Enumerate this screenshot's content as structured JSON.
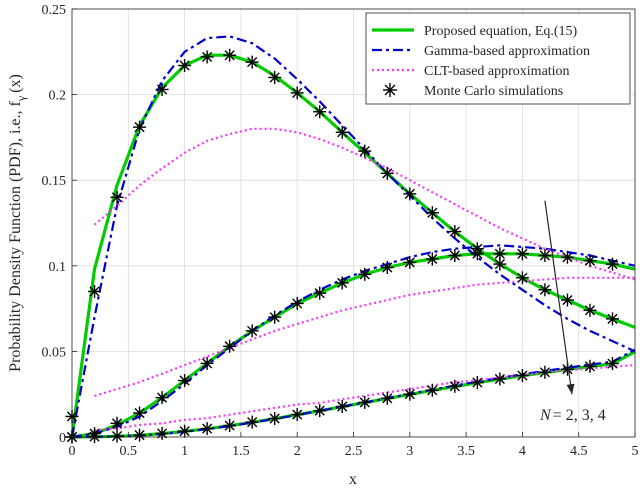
{
  "chart_data": {
    "type": "line",
    "xlabel": "x",
    "ylabel_main": "Probability Density Function (PDF), i.e., f",
    "ylabel_sub": "γ",
    "ylabel_tail": "(x)",
    "xlim": [
      0,
      5
    ],
    "ylim": [
      0,
      0.25
    ],
    "xticks": [
      "0",
      "0.5",
      "1",
      "1.5",
      "2",
      "2.5",
      "3",
      "3.5",
      "4",
      "4.5",
      "5"
    ],
    "yticks": [
      "0",
      "0.05",
      "0.1",
      "0.15",
      "0.2",
      "0.25"
    ],
    "grid": true,
    "legend_position": "top-right",
    "annotation": {
      "prefix": "N",
      "suffix": "= 2, 3, 4"
    },
    "colors": {
      "proposed": "#00cc00",
      "gamma": "#0000cc",
      "clt": "#ff33ff",
      "mc": "#000000"
    },
    "legend": [
      {
        "key": "proposed",
        "label": "Proposed equation, Eq.(15)"
      },
      {
        "key": "gamma",
        "label": "Gamma-based approximation"
      },
      {
        "key": "clt",
        "label": "CLT-based approximation"
      },
      {
        "key": "mc",
        "label": "Monte Carlo simulations"
      }
    ],
    "series": [
      {
        "key": "proposed",
        "groups": [
          {
            "N": 2,
            "x": [
              0,
              0.2,
              0.4,
              0.6,
              0.8,
              1.0,
              1.2,
              1.4,
              1.6,
              1.8,
              2.0,
              2.2,
              2.4,
              2.6,
              2.8,
              3.0,
              3.2,
              3.4,
              3.6,
              3.8,
              4.0,
              4.2,
              4.4,
              4.6,
              4.8,
              5.0
            ],
            "y": [
              0,
              0.098,
              0.147,
              0.182,
              0.204,
              0.217,
              0.223,
              0.223,
              0.219,
              0.211,
              0.201,
              0.19,
              0.178,
              0.166,
              0.154,
              0.142,
              0.131,
              0.12,
              0.11,
              0.101,
              0.093,
              0.086,
              0.08,
              0.074,
              0.069,
              0.064
            ]
          },
          {
            "N": 3,
            "x": [
              0,
              0.2,
              0.4,
              0.6,
              0.8,
              1.0,
              1.2,
              1.4,
              1.6,
              1.8,
              2.0,
              2.2,
              2.4,
              2.6,
              2.8,
              3.0,
              3.2,
              3.4,
              3.6,
              3.8,
              4.0,
              4.2,
              4.4,
              4.6,
              4.8,
              5.0
            ],
            "y": [
              0,
              0.002,
              0.007,
              0.014,
              0.023,
              0.033,
              0.043,
              0.053,
              0.062,
              0.07,
              0.078,
              0.084,
              0.09,
              0.095,
              0.099,
              0.102,
              0.104,
              0.106,
              0.107,
              0.107,
              0.107,
              0.106,
              0.105,
              0.103,
              0.101,
              0.098
            ]
          },
          {
            "N": 4,
            "x": [
              0,
              0.2,
              0.4,
              0.6,
              0.8,
              1.0,
              1.2,
              1.4,
              1.6,
              1.8,
              2.0,
              2.2,
              2.4,
              2.6,
              2.8,
              3.0,
              3.2,
              3.4,
              3.6,
              3.8,
              4.0,
              4.2,
              4.4,
              4.6,
              4.8,
              5.0
            ],
            "y": [
              0,
              0.0001,
              0.0004,
              0.001,
              0.002,
              0.0033,
              0.0048,
              0.0066,
              0.0086,
              0.0107,
              0.013,
              0.0153,
              0.0177,
              0.0201,
              0.0225,
              0.0249,
              0.0272,
              0.0295,
              0.0317,
              0.0338,
              0.0358,
              0.0377,
              0.0395,
              0.0412,
              0.0428,
              0.0498
            ]
          }
        ]
      },
      {
        "key": "gamma",
        "groups": [
          {
            "N": 2,
            "x": [
              0,
              0.2,
              0.4,
              0.6,
              0.8,
              1.0,
              1.2,
              1.4,
              1.6,
              1.8,
              2.0,
              2.2,
              2.4,
              2.6,
              2.8,
              3.0,
              3.2,
              3.4,
              3.6,
              3.8,
              4.0,
              4.2,
              4.4,
              4.6,
              4.8,
              5.0
            ],
            "y": [
              0,
              0.07,
              0.135,
              0.18,
              0.208,
              0.225,
              0.233,
              0.234,
              0.23,
              0.221,
              0.209,
              0.196,
              0.182,
              0.168,
              0.154,
              0.141,
              0.128,
              0.116,
              0.105,
              0.095,
              0.086,
              0.077,
              0.069,
              0.062,
              0.056,
              0.05
            ]
          },
          {
            "N": 3,
            "x": [
              0,
              0.2,
              0.4,
              0.6,
              0.8,
              1.0,
              1.2,
              1.4,
              1.6,
              1.8,
              2.0,
              2.2,
              2.4,
              2.6,
              2.8,
              3.0,
              3.2,
              3.4,
              3.6,
              3.8,
              4.0,
              4.2,
              4.4,
              4.6,
              4.8,
              5.0
            ],
            "y": [
              0,
              0.002,
              0.006,
              0.012,
              0.021,
              0.031,
              0.042,
              0.052,
              0.062,
              0.071,
              0.079,
              0.086,
              0.092,
              0.097,
              0.101,
              0.105,
              0.108,
              0.11,
              0.111,
              0.112,
              0.111,
              0.11,
              0.108,
              0.106,
              0.103,
              0.1
            ]
          },
          {
            "N": 4,
            "x": [
              0,
              0.2,
              0.4,
              0.6,
              0.8,
              1.0,
              1.2,
              1.4,
              1.6,
              1.8,
              2.0,
              2.2,
              2.4,
              2.6,
              2.8,
              3.0,
              3.2,
              3.4,
              3.6,
              3.8,
              4.0,
              4.2,
              4.4,
              4.6,
              4.8,
              5.0
            ],
            "y": [
              0,
              0.0001,
              0.0003,
              0.0009,
              0.0018,
              0.0031,
              0.0046,
              0.0064,
              0.0084,
              0.0106,
              0.0129,
              0.0153,
              0.0177,
              0.0202,
              0.0227,
              0.0252,
              0.0276,
              0.03,
              0.0323,
              0.0345,
              0.0366,
              0.0386,
              0.0405,
              0.0423,
              0.044,
              0.051
            ]
          }
        ]
      },
      {
        "key": "clt",
        "groups": [
          {
            "N": 2,
            "x": [
              0.2,
              0.4,
              0.6,
              0.8,
              1.0,
              1.2,
              1.4,
              1.6,
              1.8,
              2.0,
              2.2,
              2.4,
              2.6,
              2.8,
              3.0,
              3.2,
              3.4,
              3.6,
              3.8,
              4.0,
              4.2,
              4.4,
              4.6,
              4.8,
              5.0
            ],
            "y": [
              0.124,
              0.135,
              0.147,
              0.157,
              0.166,
              0.173,
              0.177,
              0.18,
              0.18,
              0.178,
              0.174,
              0.169,
              0.163,
              0.157,
              0.15,
              0.143,
              0.136,
              0.129,
              0.122,
              0.116,
              0.11,
              0.105,
              0.1,
              0.096,
              0.092
            ]
          },
          {
            "N": 3,
            "x": [
              0.2,
              0.4,
              0.6,
              0.8,
              1.0,
              1.2,
              1.4,
              1.6,
              1.8,
              2.0,
              2.2,
              2.4,
              2.6,
              2.8,
              3.0,
              3.2,
              3.4,
              3.6,
              3.8,
              4.0,
              4.2,
              4.4,
              4.6,
              4.8,
              5.0
            ],
            "y": [
              0.024,
              0.028,
              0.032,
              0.037,
              0.042,
              0.047,
              0.052,
              0.057,
              0.062,
              0.066,
              0.07,
              0.074,
              0.077,
              0.08,
              0.083,
              0.085,
              0.087,
              0.089,
              0.09,
              0.091,
              0.092,
              0.093,
              0.093,
              0.093,
              0.093
            ]
          },
          {
            "N": 4,
            "x": [
              0.2,
              0.4,
              0.6,
              0.8,
              1.0,
              1.2,
              1.4,
              1.6,
              1.8,
              2.0,
              2.2,
              2.4,
              2.6,
              2.8,
              3.0,
              3.2,
              3.4,
              3.6,
              3.8,
              4.0,
              4.2,
              4.4,
              4.6,
              4.8,
              5.0
            ],
            "y": [
              0.004,
              0.005,
              0.007,
              0.008,
              0.01,
              0.011,
              0.013,
              0.015,
              0.017,
              0.019,
              0.02,
              0.022,
              0.024,
              0.026,
              0.028,
              0.03,
              0.032,
              0.033,
              0.035,
              0.036,
              0.038,
              0.039,
              0.04,
              0.041,
              0.042
            ]
          }
        ]
      },
      {
        "key": "mc",
        "groups": [
          {
            "N": 2,
            "x": [
              0,
              0.2,
              0.4,
              0.6,
              0.8,
              1.0,
              1.2,
              1.4,
              1.6,
              1.8,
              2.0,
              2.2,
              2.4,
              2.6,
              2.8,
              3.0,
              3.2,
              3.4,
              3.6,
              3.8,
              4.0,
              4.2,
              4.4,
              4.6,
              4.8
            ],
            "y": [
              0.012,
              0.085,
              0.14,
              0.181,
              0.203,
              0.217,
              0.222,
              0.223,
              0.219,
              0.21,
              0.201,
              0.19,
              0.178,
              0.167,
              0.154,
              0.142,
              0.131,
              0.12,
              0.11,
              0.101,
              0.093,
              0.086,
              0.08,
              0.074,
              0.069
            ]
          },
          {
            "N": 3,
            "x": [
              0,
              0.2,
              0.4,
              0.6,
              0.8,
              1.0,
              1.2,
              1.4,
              1.6,
              1.8,
              2.0,
              2.2,
              2.4,
              2.6,
              2.8,
              3.0,
              3.2,
              3.4,
              3.6,
              3.8,
              4.0,
              4.2,
              4.4,
              4.6,
              4.8
            ],
            "y": [
              0,
              0.002,
              0.008,
              0.014,
              0.023,
              0.033,
              0.043,
              0.053,
              0.062,
              0.07,
              0.078,
              0.084,
              0.09,
              0.095,
              0.099,
              0.102,
              0.104,
              0.106,
              0.107,
              0.107,
              0.107,
              0.106,
              0.105,
              0.103,
              0.101
            ]
          },
          {
            "N": 4,
            "x": [
              0,
              0.2,
              0.4,
              0.6,
              0.8,
              1.0,
              1.2,
              1.4,
              1.6,
              1.8,
              2.0,
              2.2,
              2.4,
              2.6,
              2.8,
              3.0,
              3.2,
              3.4,
              3.6,
              3.8,
              4.0,
              4.2,
              4.4,
              4.6,
              4.8
            ],
            "y": [
              0,
              0.0002,
              0.0005,
              0.0011,
              0.0021,
              0.0034,
              0.0049,
              0.0067,
              0.0087,
              0.0108,
              0.0131,
              0.0154,
              0.0178,
              0.0202,
              0.0226,
              0.025,
              0.0273,
              0.0296,
              0.0318,
              0.0339,
              0.0359,
              0.0378,
              0.0396,
              0.0413,
              0.0429
            ]
          }
        ]
      }
    ]
  }
}
